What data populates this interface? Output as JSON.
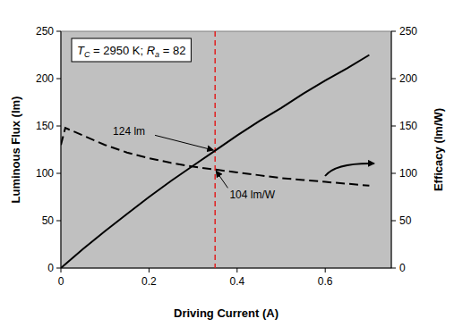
{
  "chart_data": {
    "type": "line",
    "x_label": "Driving Current (A)",
    "y_label": "Luminous Flux (lm)",
    "y2_label": "Efficacy (lm/W)",
    "x": [
      0,
      0.01,
      0.05,
      0.1,
      0.15,
      0.2,
      0.25,
      0.3,
      0.35,
      0.4,
      0.45,
      0.5,
      0.55,
      0.6,
      0.65,
      0.7
    ],
    "xlim": [
      0,
      0.75
    ],
    "xticks": [
      0,
      0.2,
      0.4,
      0.6
    ],
    "ylim": [
      0,
      250
    ],
    "yticks": [
      0,
      50,
      100,
      150,
      200,
      250
    ],
    "y2lim": [
      0,
      250
    ],
    "y2ticks": [
      0,
      50,
      100,
      150,
      200,
      250
    ],
    "series": [
      {
        "name": "Luminous Flux",
        "color": "#000000",
        "line_style": "solid",
        "values": [
          0,
          4,
          20,
          39,
          57,
          75,
          92,
          108,
          124,
          140,
          155,
          169,
          184,
          198,
          211,
          225
        ]
      },
      {
        "name": "Efficacy",
        "color": "#000000",
        "line_style": "dashed",
        "axis": "y2",
        "values": [
          130,
          148,
          140,
          130,
          122,
          116,
          111,
          107,
          104,
          101,
          98,
          95,
          93,
          91,
          89,
          87
        ]
      }
    ],
    "reference_line": {
      "x": 0.35,
      "color": "#e02020"
    },
    "annotations": [
      {
        "text": "124 lm",
        "x": 0.35,
        "y": 124,
        "text_x": 0.118,
        "text_y": 144
      },
      {
        "text": "104 lm/W",
        "x": 0.35,
        "y": 104,
        "text_x": 0.383,
        "text_y": 77,
        "axis": "y2"
      }
    ],
    "info_box": [
      {
        "symbol": "T",
        "sub": "C",
        "rest": "= 2950 K;"
      },
      {
        "symbol": "R",
        "sub": "a",
        "rest": "= 82"
      }
    ],
    "grid": false
  }
}
